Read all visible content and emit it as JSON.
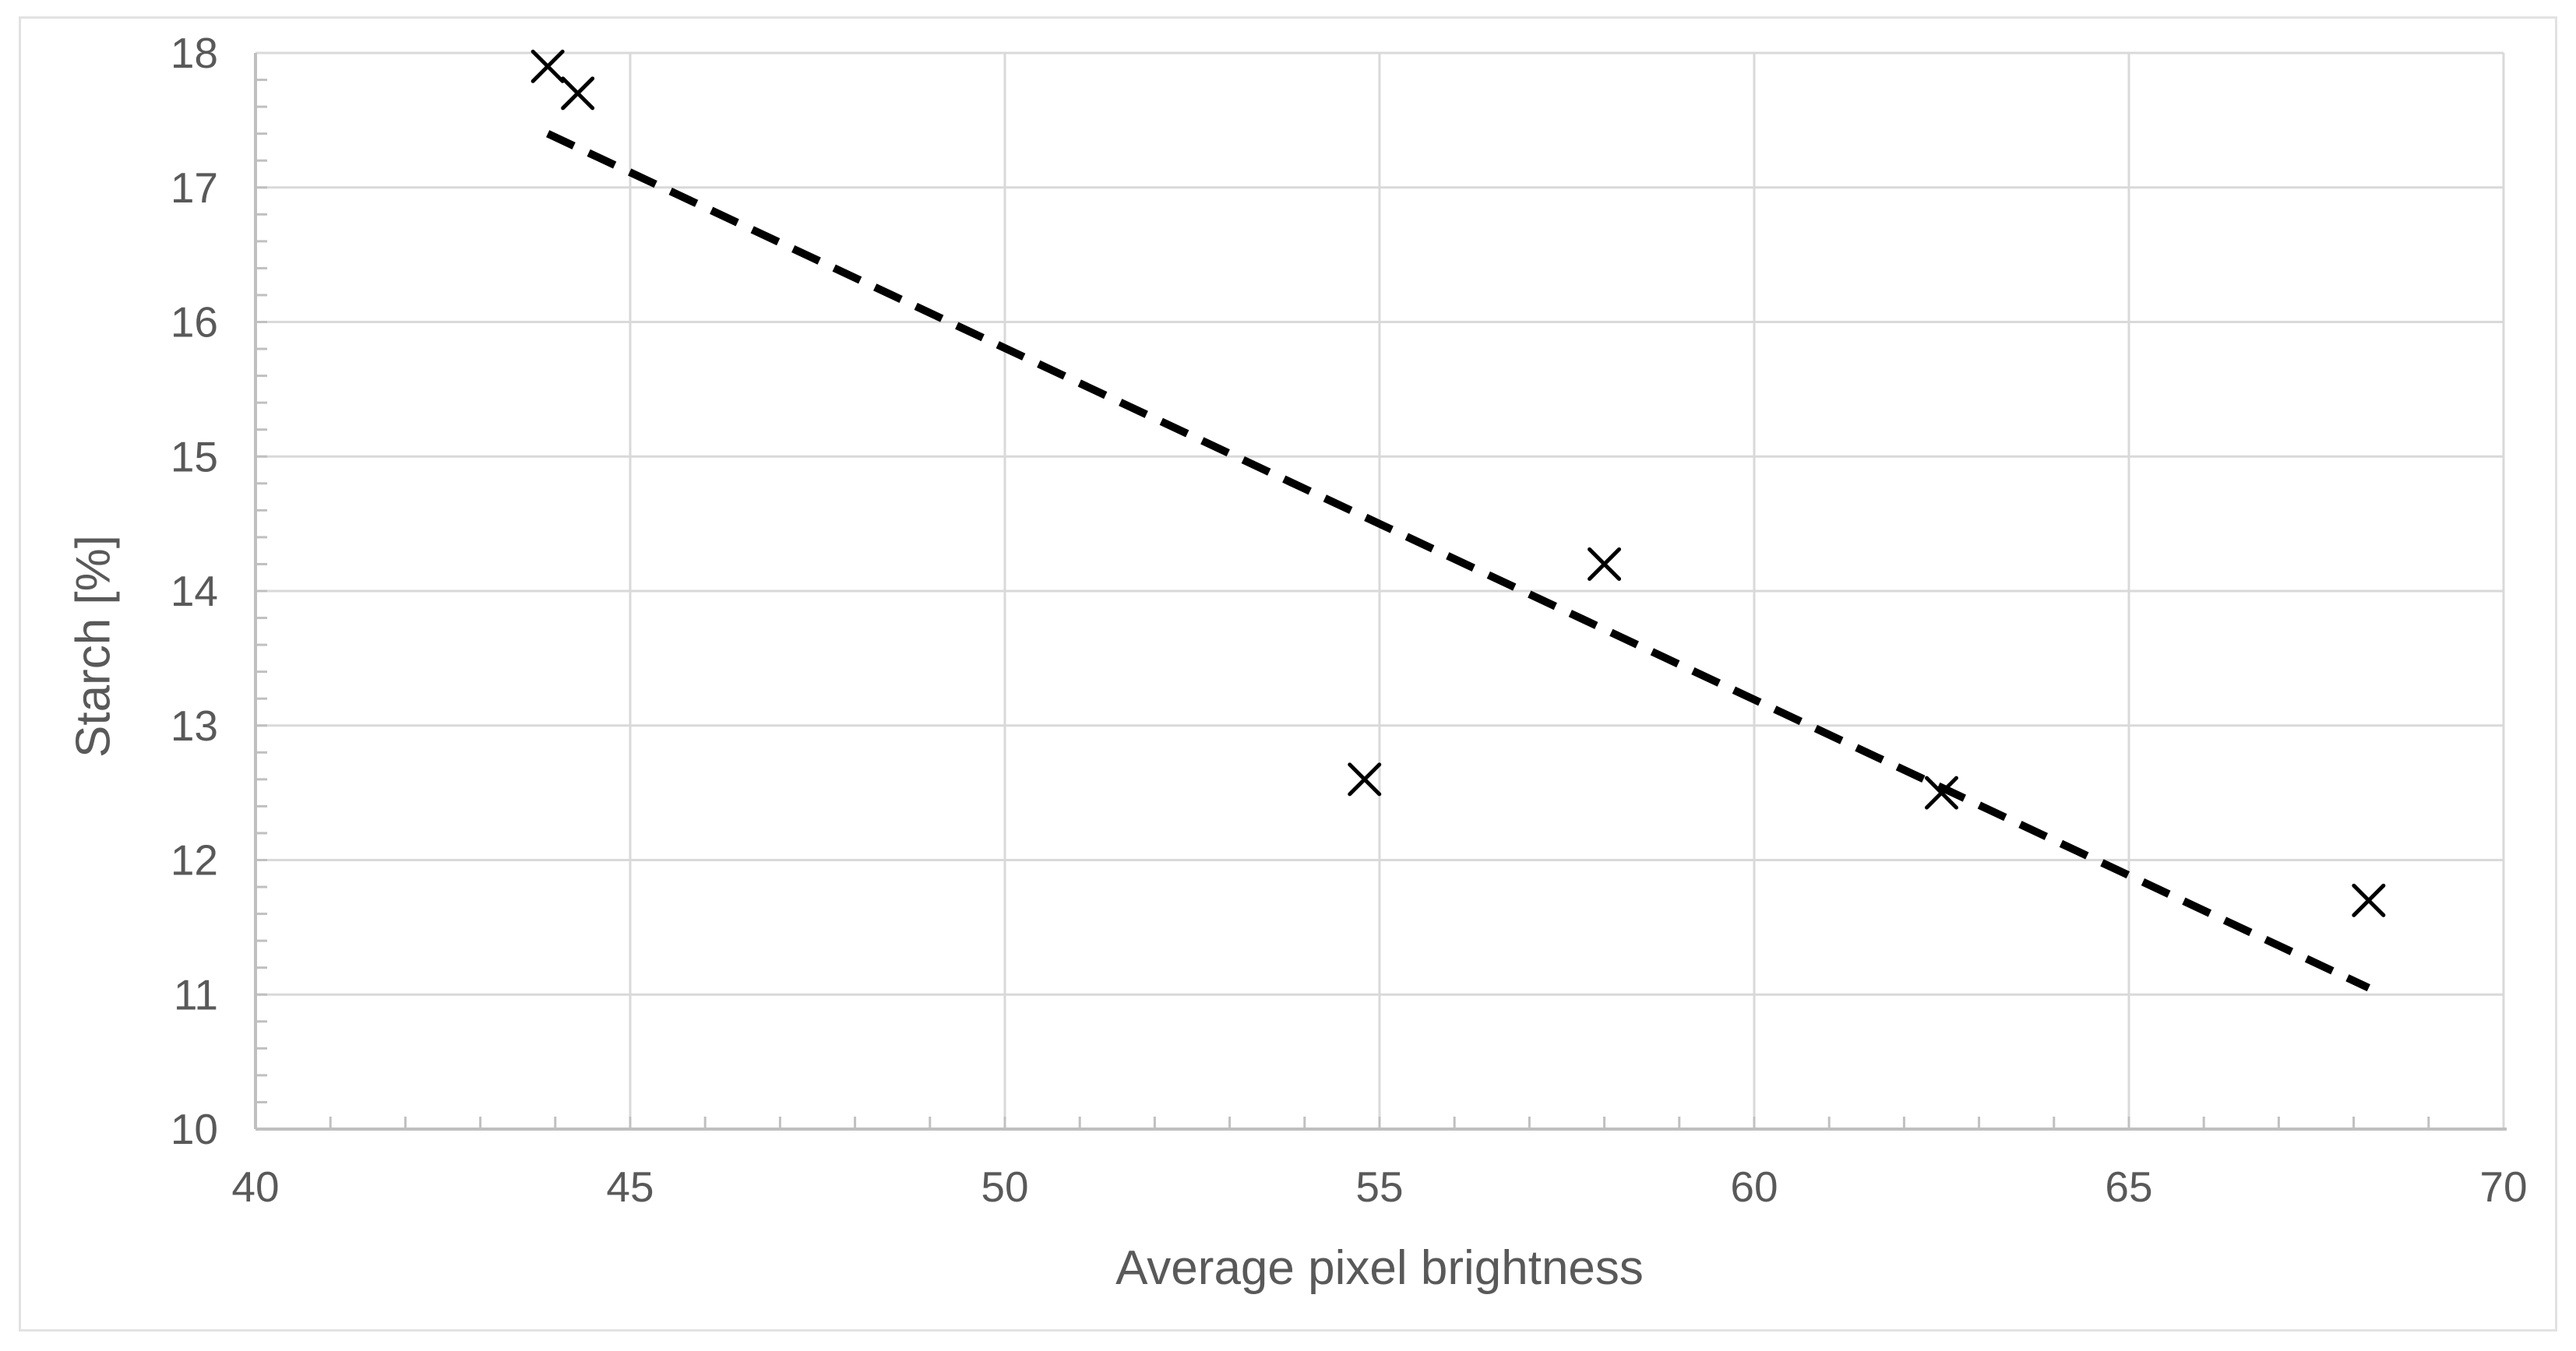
{
  "chart_data": {
    "type": "scatter",
    "title": "",
    "xlabel": "Average pixel brightness",
    "ylabel": "Starch [%]",
    "xlim": [
      40,
      70
    ],
    "ylim": [
      10,
      18
    ],
    "x_ticks": [
      40,
      45,
      50,
      55,
      60,
      65,
      70
    ],
    "y_ticks": [
      10,
      11,
      12,
      13,
      14,
      15,
      16,
      17,
      18
    ],
    "x_minor_step": 1,
    "y_minor_step": 0.2,
    "grid": true,
    "legend": false,
    "series": [
      {
        "name": "starch-vs-brightness",
        "marker": "x",
        "points": [
          [
            43.9,
            17.9
          ],
          [
            44.3,
            17.7
          ],
          [
            54.8,
            12.6
          ],
          [
            58.0,
            14.2
          ],
          [
            62.5,
            12.5
          ],
          [
            68.2,
            11.7
          ]
        ]
      }
    ],
    "trendline": {
      "type": "linear",
      "style": "dashed",
      "start": [
        43.9,
        17.4
      ],
      "end": [
        68.2,
        11.05
      ]
    }
  },
  "colors": {
    "background": "#FFFFFF",
    "border": "#E2E2E2",
    "gridline": "#D9D9D9",
    "axis": "#BFBFBF",
    "tick": "#C0C0C0",
    "tick_label": "#595959",
    "axis_title": "#595959",
    "marker": "#000000",
    "trendline": "#000000"
  }
}
